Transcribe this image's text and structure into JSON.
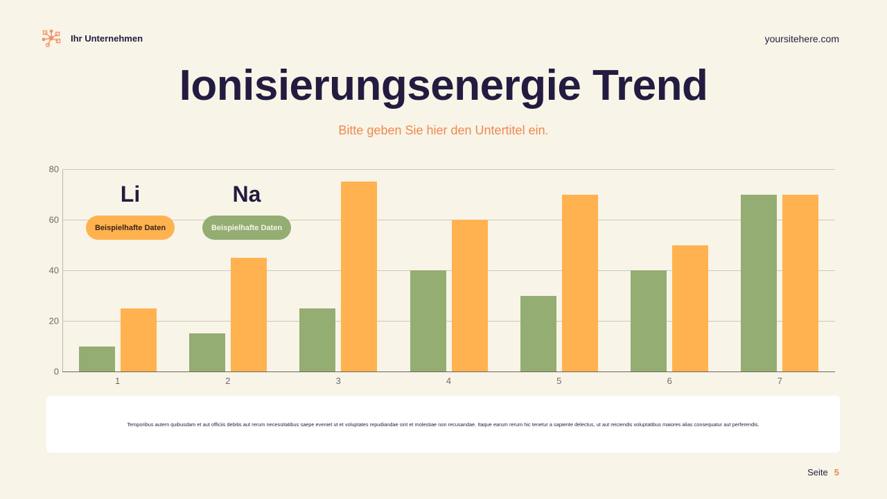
{
  "header": {
    "brand_icon": "network-nodes-icon",
    "brand_name": "Ihr Unternehmen",
    "site": "yoursitehere.com"
  },
  "title": "Ionisierungsenergie Trend",
  "subtitle": "Bitte geben Sie hier den Untertitel ein.",
  "colors": {
    "background": "#f8f4e8",
    "title": "#231c40",
    "accent": "#ee8a4e",
    "green": "#94ad72",
    "orange": "#ffb24f"
  },
  "legend": [
    {
      "symbol": "Li",
      "label": "Beispielhafte Daten",
      "color": "#ffb24f"
    },
    {
      "symbol": "Na",
      "label": "Beispielhafte Daten",
      "color": "#94ad72"
    }
  ],
  "chart_data": {
    "type": "bar",
    "title": "Ionisierungsenergie Trend",
    "subtitle": "Bitte geben Sie hier den Untertitel ein.",
    "xlabel": "",
    "ylabel": "",
    "categories": [
      "1",
      "2",
      "3",
      "4",
      "5",
      "6",
      "7"
    ],
    "series": [
      {
        "name": "Na",
        "color": "#94ad72",
        "values": [
          10,
          15,
          25,
          40,
          30,
          40,
          70
        ]
      },
      {
        "name": "Li",
        "color": "#ffb24f",
        "values": [
          25,
          45,
          75,
          60,
          70,
          50,
          70
        ]
      }
    ],
    "ylim": [
      0,
      80
    ],
    "yticks": [
      0,
      20,
      40,
      60,
      80
    ],
    "grid": true,
    "legend_position": "top-left (inside plot)"
  },
  "note": "Temporibus autem quibusdam et aut officiis debitis aut rerum necessitatibus saepe eveniet ut et voluptates repudiandae sint et molestiae non recusandae. Itaque earum rerum hic tenetur a sapiente delectus, ut aut reiciendis voluptatibus maiores alias consequatur aut perferendis.",
  "footer": {
    "page_label": "Seite",
    "page_number": "5"
  }
}
